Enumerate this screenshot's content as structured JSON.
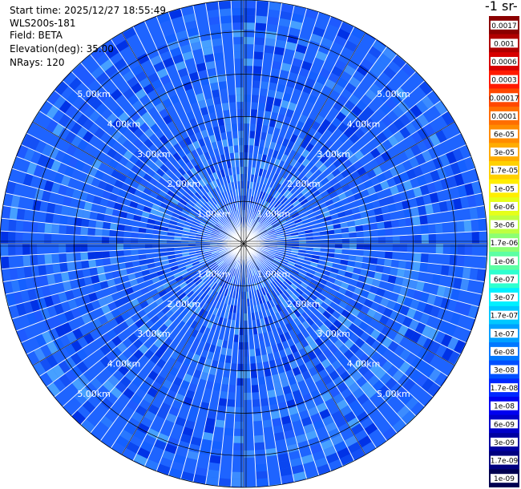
{
  "info": {
    "start_time": "Start time: 2025/12/27 18:55:49",
    "device": "WLS200s-181",
    "field": "Field: BETA",
    "elevation": "Elevation(deg): 35.00",
    "nrays": "NRays: 120"
  },
  "colorbar": {
    "title": "-1 sr-",
    "labels": [
      "0.0017",
      "0.001",
      "0.0006",
      "0.0003",
      "0.00017",
      "0.0001",
      "6e-05",
      "3e-05",
      "1.7e-05",
      "1e-05",
      "6e-06",
      "3e-06",
      "1.7e-06",
      "1e-06",
      "6e-07",
      "3e-07",
      "1.7e-07",
      "1e-07",
      "6e-08",
      "3e-08",
      "1.7e-08",
      "1e-08",
      "6e-09",
      "3e-09",
      "1.7e-09",
      "1e-09"
    ],
    "colors": [
      "#8b0000",
      "#b00000",
      "#d80000",
      "#ff1a00",
      "#ff4800",
      "#ff6e00",
      "#ff8c00",
      "#ffac00",
      "#ffd000",
      "#ffee00",
      "#e6ff1a",
      "#bfff40",
      "#8cff73",
      "#5cffa3",
      "#2effd0",
      "#00f0ff",
      "#00c8ff",
      "#00a0ff",
      "#0078ff",
      "#0050ff",
      "#0028ff",
      "#0000f0",
      "#0000c8",
      "#0000a0",
      "#000080",
      "#000050"
    ]
  },
  "chart_data": {
    "type": "heatmap",
    "title": "",
    "field": "BETA",
    "elevation_deg": 35.0,
    "nrays": 120,
    "range_rings_km": [
      1,
      2,
      3,
      4,
      5
    ],
    "range_ring_labels": [
      "1.00km",
      "2.00km",
      "3.00km",
      "4.00km",
      "5.00km"
    ],
    "max_range_km": 5.75,
    "dominant_value_range": [
      "1.7e-08",
      "6e-08"
    ],
    "grid": true
  }
}
